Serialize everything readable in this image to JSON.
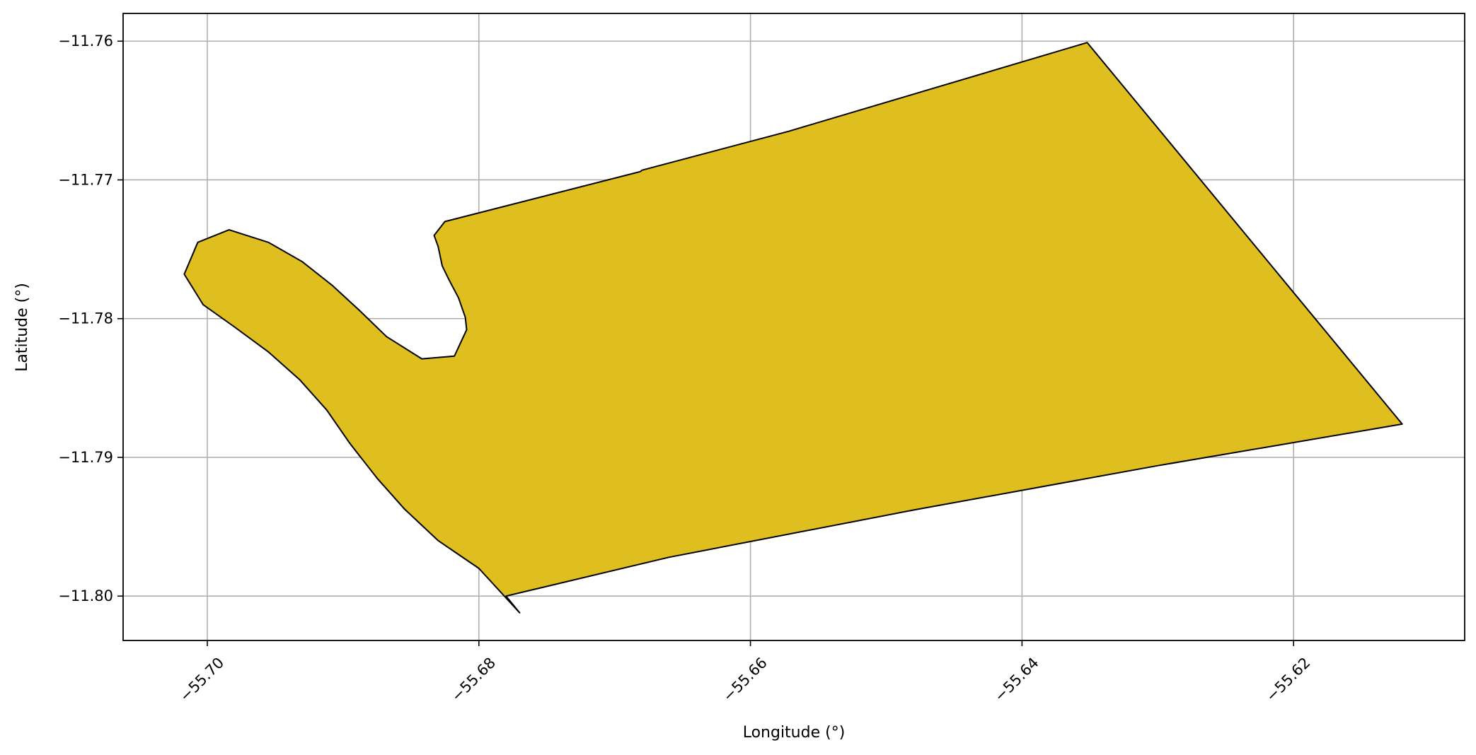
{
  "chart_data": {
    "type": "polygon-map",
    "xlabel": "Longitude (°)",
    "ylabel": "Latitude (°)",
    "xlim": [
      -55.7062,
      -55.6074
    ],
    "ylim": [
      -11.8032,
      -11.758
    ],
    "grid": true,
    "x_ticks": [
      -55.7,
      -55.68,
      -55.66,
      -55.64,
      -55.62
    ],
    "x_tick_labels": [
      "−55.70",
      "−55.68",
      "−55.66",
      "−55.64",
      "−55.62"
    ],
    "y_ticks": [
      -11.76,
      -11.77,
      -11.78,
      -11.79,
      -11.8
    ],
    "y_tick_labels": [
      "−11.76",
      "−11.77",
      "−11.78",
      "−11.79",
      "−11.80"
    ],
    "fill_color": "#DFBE20",
    "edge_color": "#000000",
    "polygon": [
      [
        -55.6352,
        -11.7601
      ],
      [
        -55.612,
        -11.7876
      ],
      [
        -55.63,
        -11.7906
      ],
      [
        -55.648,
        -11.7938
      ],
      [
        -55.666,
        -11.7972
      ],
      [
        -55.678,
        -11.8
      ],
      [
        -55.677,
        -11.8012
      ],
      [
        -55.68,
        -11.798
      ],
      [
        -55.683,
        -11.796
      ],
      [
        -55.6855,
        -11.7937
      ],
      [
        -55.6875,
        -11.7915
      ],
      [
        -55.6895,
        -11.789
      ],
      [
        -55.6912,
        -11.7866
      ],
      [
        -55.6932,
        -11.7844
      ],
      [
        -55.6955,
        -11.7824
      ],
      [
        -55.698,
        -11.7806
      ],
      [
        -55.7003,
        -11.779
      ],
      [
        -55.7017,
        -11.7768
      ],
      [
        -55.7007,
        -11.7745
      ],
      [
        -55.6984,
        -11.7736
      ],
      [
        -55.6955,
        -11.7745
      ],
      [
        -55.693,
        -11.7759
      ],
      [
        -55.6908,
        -11.7776
      ],
      [
        -55.6888,
        -11.7794
      ],
      [
        -55.6868,
        -11.7813
      ],
      [
        -55.6842,
        -11.7829
      ],
      [
        -55.6818,
        -11.7827
      ],
      [
        -55.6809,
        -11.7808
      ],
      [
        -55.681,
        -11.7799
      ],
      [
        -55.6815,
        -11.7785
      ],
      [
        -55.6822,
        -11.7772
      ],
      [
        -55.6827,
        -11.7762
      ],
      [
        -55.683,
        -11.7748
      ],
      [
        -55.6833,
        -11.774
      ],
      [
        -55.6825,
        -11.773
      ],
      [
        -55.6681,
        -11.7694
      ],
      [
        -55.668,
        -11.7693
      ],
      [
        -55.6572,
        -11.7665
      ],
      [
        -55.6352,
        -11.7601
      ]
    ]
  }
}
